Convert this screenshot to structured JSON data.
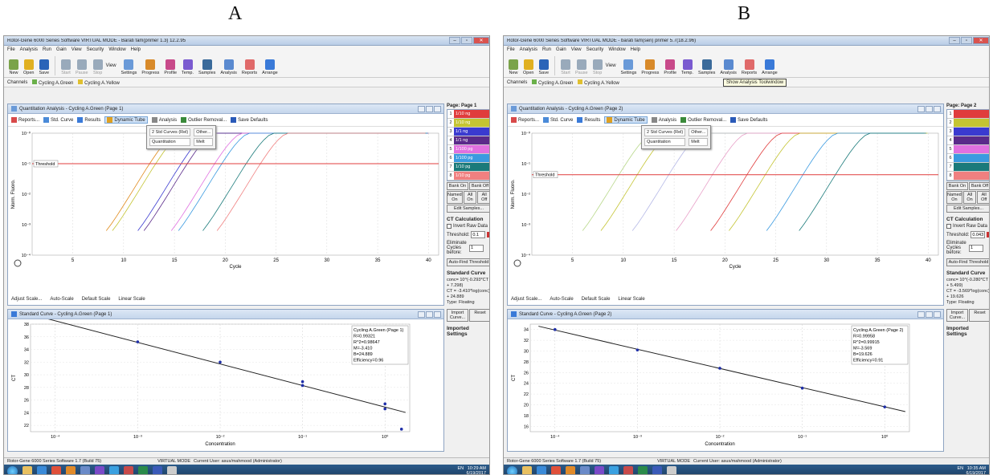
{
  "panels": [
    {
      "label": "A",
      "window_title": "Rotor-Gene 6000 Series Software VIRTUAL MODE - Barati fam(primer 1.3) 12.2.95",
      "menu": [
        "File",
        "Analysis",
        "Run",
        "Gain",
        "View",
        "Security",
        "Window",
        "Help"
      ],
      "toolbar": [
        "New",
        "Open",
        "Save",
        "Start",
        "Pause",
        "Stop",
        "View",
        "Settings",
        "Progress",
        "Profile",
        "Temp.",
        "Samples",
        "Analysis",
        "Reports",
        "Arrange"
      ],
      "channels_label": "Channels",
      "channels": [
        "Cycling A.Green",
        "Cycling A.Yellow"
      ],
      "tooltip": "",
      "quant_title": "Quantitation Analysis - Cycling A.Green (Page 1)",
      "quant_toolbar": [
        "Reports...",
        "Std. Curve",
        "Results",
        "Dynamic Tube",
        "Analysis",
        "Outlier Removal...",
        "Save Defaults"
      ],
      "analysis_menu": [
        "2 Std Curves (Rel)",
        "Other...",
        "Quantitation",
        "Melt"
      ],
      "threshold_label": "Threshold",
      "y_axis_label": "Norm. Fluoro.",
      "x_axis_label": "Cycle",
      "x_ticks": [
        "5",
        "10",
        "15",
        "20",
        "25",
        "30",
        "35",
        "40"
      ],
      "y_ticks": [
        "10⁻⁰",
        "10⁻¹",
        "10⁻²",
        "10⁻³",
        "10⁻⁴"
      ],
      "scale_buttons": [
        "Adjust Scale...",
        "Auto-Scale",
        "Default Scale",
        "Linear Scale"
      ],
      "std_title": "Standard Curve - Cycling A.Green (Page 1)",
      "std_y_label": "CT",
      "std_x_label": "Concentration",
      "std_y_ticks": [
        "38",
        "36",
        "34",
        "32",
        "30",
        "28",
        "26",
        "24",
        "22"
      ],
      "std_x_ticks": [
        "10⁻⁴",
        "10⁻³",
        "10⁻²",
        "10⁻¹",
        "10⁰"
      ],
      "std_box": [
        "Cycling A.Green (Page 1)",
        "R=0.99321",
        "R^2=0.98647",
        "M=-3.410",
        "B=24.889",
        "Efficiency=0.96"
      ],
      "page_label": "Page: Page 1",
      "page_rows": [
        {
          "n": "1",
          "label": "1/10 ng",
          "color": "#e03c3c"
        },
        {
          "n": "2",
          "label": "1/10 ng",
          "color": "#c4c432"
        },
        {
          "n": "3",
          "label": "1/1 ng",
          "color": "#3a3ad0"
        },
        {
          "n": "4",
          "label": "1/1 ng",
          "color": "#5a2a8a"
        },
        {
          "n": "5",
          "label": "1/100 pg",
          "color": "#e070e0"
        },
        {
          "n": "6",
          "label": "1/100 pg",
          "color": "#3a9ae0"
        },
        {
          "n": "7",
          "label": "1/10 pg",
          "color": "#1a7a7a"
        },
        {
          "n": "8",
          "label": "1/10 pg",
          "color": "#f08080"
        }
      ],
      "bank_buttons": [
        "Bank On",
        "Bank Off",
        "Named On",
        "All On",
        "All Off",
        "Edit Samples..."
      ],
      "ct_calc": "CT Calculation",
      "invert": "Invert Raw Data",
      "threshold_field": "Threshold:",
      "threshold_value": "0.1",
      "eliminate": "Eliminate Cycles before:",
      "eliminate_value": "1",
      "autofind": "Auto-Find Threshold",
      "std_curve_head": "Standard Curve",
      "std_curve_lines": [
        "conc= 10^(-0.293*CT + 7.298)",
        "CT = -3.410*log(conc) + 24.889",
        "Type: Floating"
      ],
      "import_btn": "Import Curve...",
      "reset_btn": "Reset",
      "imported": "Imported Settings",
      "status_left": "Rotor-Gene 6000 Series Software 1.7 (Build 75)",
      "status_mid": "VIRTUAL MODE",
      "status_user": "Current User: asus/mahmood (Administrator)",
      "tray_time": "10:29 AM",
      "tray_date": "6/19/2017",
      "tray_lang": "EN"
    },
    {
      "label": "B",
      "window_title": "Rotor-Gene 6000 Series Software VIRTUAL MODE - barati fam(sen) primer 5.7(18.2.96)",
      "menu": [
        "File",
        "Analysis",
        "Run",
        "Gain",
        "View",
        "Security",
        "Window",
        "Help"
      ],
      "toolbar": [
        "New",
        "Open",
        "Save",
        "Start",
        "Pause",
        "Stop",
        "View",
        "Settings",
        "Progress",
        "Profile",
        "Temp.",
        "Samples",
        "Analysis",
        "Reports",
        "Arrange"
      ],
      "channels_label": "Channels",
      "channels": [
        "Cycling A.Green",
        "Cycling A.Yellow"
      ],
      "tooltip": "Show Analysis Toolwindow",
      "quant_title": "Quantitation Analysis - Cycling A.Green (Page 2)",
      "quant_toolbar": [
        "Reports...",
        "Std. Curve",
        "Results",
        "Dynamic Tube",
        "Analysis",
        "Outlier Removal...",
        "Save Defaults"
      ],
      "analysis_menu": [
        "2 Std Curves (Rel)",
        "Other...",
        "Quantitation",
        "Melt"
      ],
      "threshold_label": "Threshold",
      "y_axis_label": "Norm. Fluoro.",
      "x_axis_label": "Cycle",
      "x_ticks": [
        "5",
        "10",
        "15",
        "20",
        "25",
        "30",
        "35",
        "40"
      ],
      "y_ticks": [
        "10⁻⁰",
        "10⁻¹",
        "10⁻²",
        "10⁻³",
        "10⁻⁴"
      ],
      "scale_buttons": [
        "Adjust Scale...",
        "Auto-Scale",
        "Default Scale",
        "Linear Scale"
      ],
      "std_title": "Standard Curve - Cycling A.Green (Page 2)",
      "std_y_label": "CT",
      "std_x_label": "Concentration",
      "std_y_ticks": [
        "34",
        "32",
        "30",
        "28",
        "26",
        "24",
        "22",
        "20",
        "18",
        "16"
      ],
      "std_x_ticks": [
        "10⁻⁴",
        "10⁻³",
        "10⁻²",
        "10⁻¹",
        "10⁰"
      ],
      "std_box": [
        "Cycling A.Green (Page 2)",
        "R=0.99958",
        "R^2=0.99915",
        "M=-3.569",
        "B=19.626",
        "Efficiency=0.91"
      ],
      "page_label": "Page: Page 2",
      "page_rows": [
        {
          "n": "1",
          "label": "",
          "color": "#e03c3c"
        },
        {
          "n": "2",
          "label": "",
          "color": "#c4c432"
        },
        {
          "n": "3",
          "label": "",
          "color": "#3a3ad0"
        },
        {
          "n": "4",
          "label": "",
          "color": "#5a2a8a"
        },
        {
          "n": "5",
          "label": "",
          "color": "#e070e0"
        },
        {
          "n": "6",
          "label": "",
          "color": "#3a9ae0"
        },
        {
          "n": "7",
          "label": "",
          "color": "#1a7a7a"
        },
        {
          "n": "8",
          "label": "",
          "color": "#f08080"
        }
      ],
      "bank_buttons": [
        "Bank On",
        "Bank Off",
        "Named On",
        "All On",
        "All Off",
        "Edit Samples..."
      ],
      "ct_calc": "CT Calculation",
      "invert": "Invert Raw Data",
      "threshold_field": "Threshold:",
      "threshold_value": "0.0435",
      "eliminate": "Eliminate Cycles before:",
      "eliminate_value": "1",
      "autofind": "Auto-Find Threshold",
      "std_curve_head": "Standard Curve",
      "std_curve_lines": [
        "conc= 10^(-0.280*CT + 5.499)",
        "CT = -3.569*log(conc) + 19.626",
        "Type: Floating"
      ],
      "import_btn": "Import Curve...",
      "reset_btn": "Reset",
      "imported": "Imported Settings",
      "status_left": "Rotor-Gene 6000 Series Software 1.7 (Build 75)",
      "status_mid": "VIRTUAL MODE",
      "status_user": "Current User: asus/mahmood (Administrator)",
      "tray_time": "10:35 AM",
      "tray_date": "6/19/2017",
      "tray_lang": "EN"
    }
  ],
  "colors": {
    "threshold": "#e03c3c",
    "regression": "#222222",
    "points": "#1e2ea8"
  },
  "chart_data": [
    {
      "type": "line",
      "panel": "A",
      "title": "Quantitation Analysis - Cycling A.Green (Page 1)",
      "xlabel": "Cycle",
      "ylabel": "Norm. Fluoro.",
      "log_y": true,
      "threshold": 0.1,
      "series_ct": [
        12.5,
        13.1,
        15.6,
        16.2,
        18.9,
        19.6,
        22.0,
        23.4
      ],
      "series_colors": [
        "#e08a1a",
        "#c4c432",
        "#3a3ad0",
        "#5a2a8a",
        "#e070e0",
        "#3a9ae0",
        "#1a7a7a",
        "#f08080"
      ]
    },
    {
      "type": "scatter",
      "panel": "A",
      "title": "Standard Curve - Cycling A.Green (Page 1)",
      "xlabel": "Concentration",
      "ylabel": "CT",
      "log_x": true,
      "xlim": [
        -4.3,
        0.3
      ],
      "ylim": [
        21,
        38
      ],
      "points": [
        [
          -3,
          35.2
        ],
        [
          -2,
          32.0
        ],
        [
          -1,
          28.9
        ],
        [
          -1,
          28.3
        ],
        [
          0,
          25.4
        ],
        [
          0,
          24.6
        ],
        [
          0.2,
          21.4
        ]
      ],
      "fit": {
        "slope": -3.41,
        "intercept": 24.889
      }
    },
    {
      "type": "line",
      "panel": "B",
      "title": "Quantitation Analysis - Cycling A.Green (Page 2)",
      "xlabel": "Cycle",
      "ylabel": "Norm. Fluoro.",
      "log_y": true,
      "threshold": 0.0435,
      "series_ct": [
        10.2,
        12.0,
        15.1,
        19.4,
        22.8,
        24.6,
        28.3,
        31.5
      ],
      "series_colors": [
        "#b8d88a",
        "#c4c432",
        "#b5b8e6",
        "#e8a0c8",
        "#e03c3c",
        "#c4c432",
        "#3a9ae0",
        "#1a7a7a"
      ]
    },
    {
      "type": "scatter",
      "panel": "B",
      "title": "Standard Curve - Cycling A.Green (Page 2)",
      "xlabel": "Concentration",
      "ylabel": "CT",
      "log_x": true,
      "xlim": [
        -4.3,
        0.3
      ],
      "ylim": [
        15,
        35
      ],
      "points": [
        [
          -4,
          34.0
        ],
        [
          -3,
          30.2
        ],
        [
          -2,
          26.8
        ],
        [
          -1,
          23.1
        ],
        [
          0,
          19.6
        ],
        [
          0.8,
          16.5
        ]
      ],
      "fit": {
        "slope": -3.569,
        "intercept": 19.626
      }
    }
  ]
}
